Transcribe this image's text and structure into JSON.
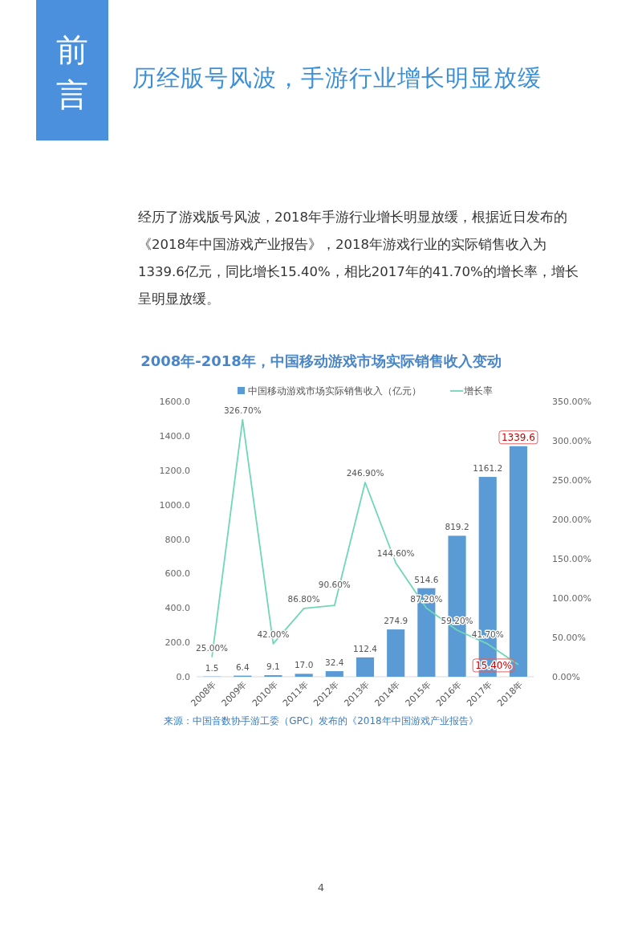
{
  "chart_data": {
    "type": "bar",
    "title": "2008年-2018年，中国移动游戏市场实际销售收入变动",
    "categories": [
      "2008年",
      "2009年",
      "2010年",
      "2011年",
      "2012年",
      "2013年",
      "2014年",
      "2015年",
      "2016年",
      "2017年",
      "2018年"
    ],
    "series": [
      {
        "name": "中国移动游戏市场实际销售收入（亿元）",
        "color": "#5b9bd5",
        "values": [
          1.5,
          6.4,
          9.1,
          17.0,
          32.4,
          112.4,
          274.9,
          514.6,
          819.2,
          1161.2,
          1339.6
        ],
        "value_labels": [
          "1.5",
          "6.4",
          "9.1",
          "17.0",
          "32.4",
          "112.4",
          "274.9",
          "514.6",
          "819.2",
          "1161.2",
          "1339.6"
        ]
      },
      {
        "name": "增长率",
        "type": "line",
        "axis": "y2",
        "color": "#6fd6b8",
        "values": [
          25.0,
          326.7,
          42.0,
          86.8,
          90.6,
          246.9,
          144.6,
          87.2,
          59.2,
          41.7,
          15.4
        ],
        "value_labels": [
          "25.00%",
          "326.70%",
          "42.00%",
          "86.80%",
          "90.60%",
          "246.90%",
          "144.60%",
          "87.20%",
          "59.20%",
          "41.70%",
          "15.40%"
        ]
      }
    ],
    "ylim": [
      0,
      1600
    ],
    "yticks": [
      {
        "value": 0,
        "label": "0.0"
      },
      {
        "value": 200,
        "label": "200.0"
      },
      {
        "value": 400,
        "label": "400.0"
      },
      {
        "value": 600,
        "label": "600.0"
      },
      {
        "value": 800,
        "label": "800.0"
      },
      {
        "value": 1000,
        "label": "1000.0"
      },
      {
        "value": 1200,
        "label": "1200.0"
      },
      {
        "value": 1400,
        "label": "1400.0"
      },
      {
        "value": 1600,
        "label": "1600.0"
      }
    ],
    "y2lim": [
      0,
      350
    ],
    "y2ticks": [
      {
        "value": 0,
        "label": "0.00%"
      },
      {
        "value": 50,
        "label": "50.00%"
      },
      {
        "value": 100,
        "label": "100.00%"
      },
      {
        "value": 150,
        "label": "150.00%"
      },
      {
        "value": 200,
        "label": "200.00%"
      },
      {
        "value": 250,
        "label": "250.00%"
      },
      {
        "value": 300,
        "label": "300.00%"
      },
      {
        "value": 350,
        "label": "350.00%"
      }
    ],
    "legend": "top",
    "annotations": [
      "前言",
      "历经版号风波，手游行业增长明显放缓",
      "经历了游戏版号风波，2018年手游行业增长明显放缓，根据近日发布的《2018年中国游戏产业报告》，2018年游戏行业的实际销售收入为1339.6亿元，同比增长15.40%，相比2017年的41.70%的增长率，增长呈明显放缓。",
      "来源：中国音数协手游工委（GPC）发布的《2018年中国游戏产业报告》",
      "4"
    ]
  }
}
